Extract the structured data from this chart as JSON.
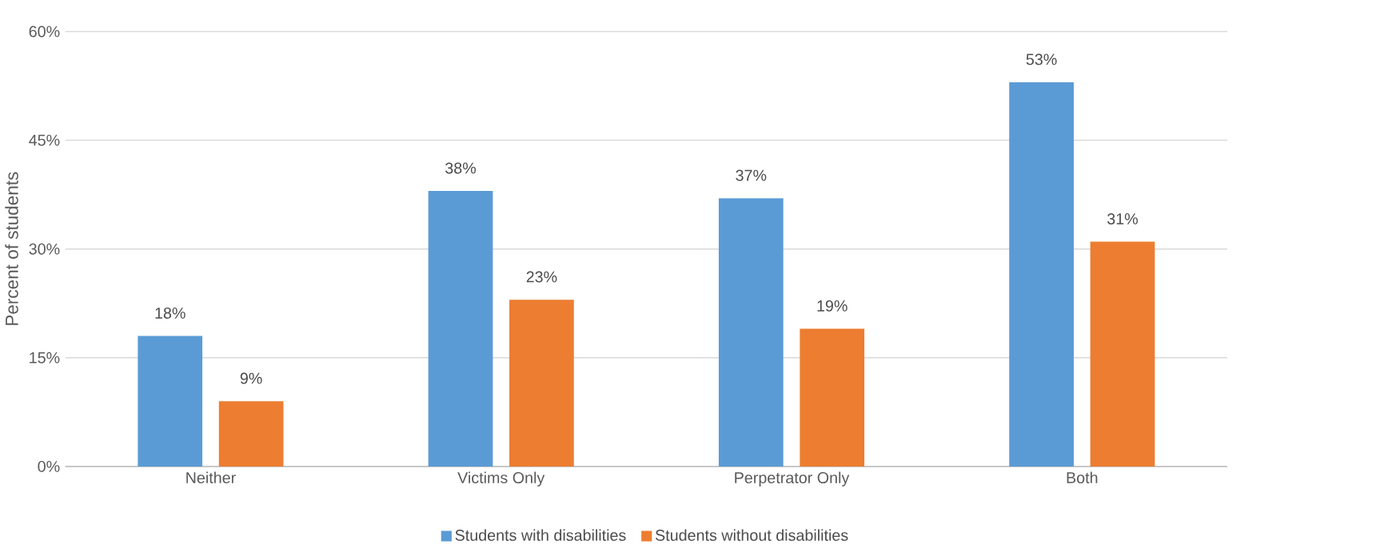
{
  "chart_data": {
    "type": "bar",
    "ylabel": "Percent of students",
    "categories": [
      "Neither",
      "Victims Only",
      "Perpetrator Only",
      "Both"
    ],
    "series": [
      {
        "name": "Students with disabilities",
        "color": "#5b9bd5",
        "values": [
          18,
          38,
          37,
          53
        ],
        "value_labels": [
          "18%",
          "38%",
          "37%",
          "53%"
        ]
      },
      {
        "name": "Students without disabilities",
        "color": "#ed7d31",
        "values": [
          9,
          23,
          19,
          31
        ],
        "value_labels": [
          "9%",
          "23%",
          "19%",
          "31%"
        ]
      }
    ],
    "ylim": [
      0,
      60
    ],
    "yticks": [
      {
        "value": 0,
        "label": "0%"
      },
      {
        "value": 15,
        "label": "15%"
      },
      {
        "value": 30,
        "label": "30%"
      },
      {
        "value": 45,
        "label": "45%"
      },
      {
        "value": 60,
        "label": "60%"
      }
    ],
    "grid": "y",
    "legend": "bottom"
  }
}
